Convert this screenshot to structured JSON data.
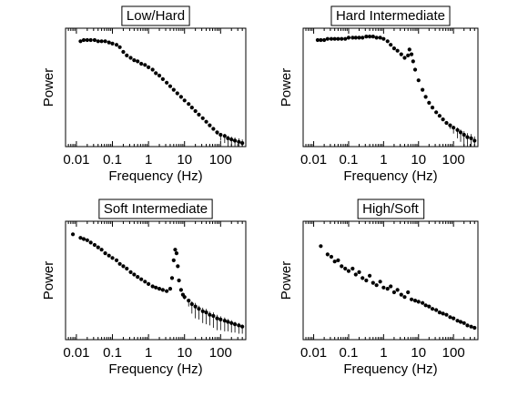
{
  "chart_data": [
    {
      "type": "scatter",
      "title": "Low/Hard",
      "xlabel": "Frequency (Hz)",
      "ylabel": "Power",
      "xscale": "log",
      "xlim": [
        0.005,
        500
      ],
      "x_tick_labels": [
        "0.01",
        "0.1",
        "1",
        "10",
        "100"
      ],
      "y_tick_labels": [],
      "y_units": "relative (log)",
      "series": [
        {
          "x": [
            0.013,
            0.016,
            0.02,
            0.025,
            0.032,
            0.04,
            0.05,
            0.063,
            0.08,
            0.1,
            0.13,
            0.16,
            0.2,
            0.25,
            0.32,
            0.4,
            0.5,
            0.63,
            0.8,
            1,
            1.3,
            1.6,
            2,
            2.5,
            3.2,
            4,
            5,
            6.3,
            8,
            10,
            13,
            16,
            20,
            25,
            32,
            40,
            50,
            63,
            80,
            100,
            130,
            160,
            200,
            250,
            320,
            400
          ],
          "y": [
            0.89,
            0.9,
            0.9,
            0.9,
            0.9,
            0.89,
            0.89,
            0.89,
            0.88,
            0.87,
            0.86,
            0.84,
            0.8,
            0.77,
            0.75,
            0.73,
            0.72,
            0.7,
            0.69,
            0.67,
            0.65,
            0.62,
            0.6,
            0.57,
            0.54,
            0.51,
            0.48,
            0.45,
            0.42,
            0.39,
            0.36,
            0.33,
            0.3,
            0.27,
            0.24,
            0.21,
            0.18,
            0.15,
            0.12,
            0.1,
            0.09,
            0.07,
            0.06,
            0.05,
            0.04,
            0.03
          ],
          "err": [
            0,
            0,
            0,
            0,
            0,
            0,
            0,
            0,
            0,
            0,
            0,
            0,
            0,
            0,
            0,
            0,
            0,
            0,
            0,
            0,
            0,
            0,
            0,
            0,
            0,
            0,
            0,
            0,
            0,
            0,
            0,
            0,
            0,
            0,
            0,
            0,
            0,
            0,
            0.02,
            0.05,
            0.06,
            0.07,
            0.08,
            0.09,
            0.1,
            0.1
          ]
        }
      ]
    },
    {
      "type": "scatter",
      "title": "Hard Intermediate",
      "xlabel": "Frequency (Hz)",
      "ylabel": "Power",
      "xscale": "log",
      "xlim": [
        0.005,
        500
      ],
      "x_tick_labels": [
        "0.01",
        "0.1",
        "1",
        "10",
        "100"
      ],
      "y_tick_labels": [],
      "y_units": "relative (log)",
      "series": [
        {
          "x": [
            0.013,
            0.016,
            0.02,
            0.025,
            0.032,
            0.04,
            0.05,
            0.063,
            0.08,
            0.1,
            0.13,
            0.16,
            0.2,
            0.25,
            0.32,
            0.4,
            0.5,
            0.63,
            0.8,
            1,
            1.3,
            1.6,
            2,
            2.5,
            3.2,
            4,
            5,
            5.5,
            6.3,
            7,
            8,
            10,
            13,
            16,
            20,
            25,
            32,
            40,
            50,
            63,
            80,
            100,
            130,
            160,
            200,
            250,
            320,
            400
          ],
          "y": [
            0.9,
            0.9,
            0.9,
            0.91,
            0.91,
            0.91,
            0.91,
            0.91,
            0.91,
            0.92,
            0.92,
            0.92,
            0.92,
            0.92,
            0.93,
            0.93,
            0.93,
            0.92,
            0.92,
            0.91,
            0.89,
            0.86,
            0.83,
            0.81,
            0.78,
            0.75,
            0.77,
            0.82,
            0.78,
            0.72,
            0.65,
            0.56,
            0.48,
            0.42,
            0.37,
            0.33,
            0.29,
            0.26,
            0.23,
            0.2,
            0.18,
            0.16,
            0.14,
            0.12,
            0.1,
            0.08,
            0.07,
            0.05
          ],
          "err": [
            0,
            0,
            0,
            0,
            0,
            0,
            0,
            0,
            0,
            0,
            0,
            0,
            0,
            0,
            0,
            0,
            0,
            0,
            0,
            0,
            0,
            0,
            0,
            0,
            0,
            0,
            0,
            0,
            0,
            0,
            0,
            0,
            0,
            0,
            0,
            0,
            0,
            0,
            0,
            0,
            0.03,
            0.05,
            0.07,
            0.08,
            0.1,
            0.11,
            0.12,
            0.12
          ]
        }
      ]
    },
    {
      "type": "scatter",
      "title": "Soft Intermediate",
      "xlabel": "Frequency (Hz)",
      "ylabel": "Power",
      "xscale": "log",
      "xlim": [
        0.005,
        500
      ],
      "x_tick_labels": [
        "0.01",
        "0.1",
        "1",
        "10",
        "100"
      ],
      "y_tick_labels": [],
      "y_units": "relative (log)",
      "series": [
        {
          "x": [
            0.008,
            0.013,
            0.016,
            0.02,
            0.025,
            0.032,
            0.04,
            0.05,
            0.063,
            0.08,
            0.1,
            0.13,
            0.16,
            0.2,
            0.25,
            0.32,
            0.4,
            0.5,
            0.63,
            0.8,
            1,
            1.3,
            1.6,
            2,
            2.5,
            3.2,
            4,
            4.5,
            5,
            5.5,
            6,
            6.5,
            7,
            8,
            9,
            10,
            13,
            16,
            20,
            25,
            32,
            40,
            50,
            63,
            80,
            100,
            130,
            160,
            200,
            250,
            320,
            400
          ],
          "y": [
            0.89,
            0.86,
            0.85,
            0.84,
            0.82,
            0.8,
            0.78,
            0.76,
            0.73,
            0.71,
            0.69,
            0.67,
            0.64,
            0.62,
            0.6,
            0.57,
            0.55,
            0.53,
            0.51,
            0.49,
            0.47,
            0.45,
            0.44,
            0.43,
            0.42,
            0.41,
            0.43,
            0.52,
            0.67,
            0.76,
            0.73,
            0.62,
            0.5,
            0.42,
            0.38,
            0.36,
            0.33,
            0.3,
            0.28,
            0.26,
            0.24,
            0.23,
            0.21,
            0.2,
            0.18,
            0.17,
            0.16,
            0.15,
            0.14,
            0.13,
            0.12,
            0.11
          ],
          "err": [
            0,
            0,
            0,
            0,
            0,
            0,
            0,
            0,
            0,
            0,
            0,
            0,
            0,
            0,
            0,
            0,
            0,
            0,
            0,
            0,
            0,
            0,
            0,
            0,
            0,
            0,
            0,
            0,
            0,
            0,
            0,
            0,
            0,
            0,
            0,
            0.02,
            0.05,
            0.08,
            0.1,
            0.09,
            0.1,
            0.1,
            0.09,
            0.1,
            0.1,
            0.09,
            0.09,
            0.08,
            0.08,
            0.07,
            0.07,
            0.06
          ]
        }
      ]
    },
    {
      "type": "scatter",
      "title": "High/Soft",
      "xlabel": "Frequency (Hz)",
      "ylabel": "Power",
      "xscale": "log",
      "xlim": [
        0.005,
        500
      ],
      "x_tick_labels": [
        "0.01",
        "0.1",
        "1",
        "10",
        "100"
      ],
      "y_tick_labels": [],
      "y_units": "relative (log)",
      "series": [
        {
          "x": [
            0.016,
            0.025,
            0.032,
            0.04,
            0.05,
            0.063,
            0.08,
            0.1,
            0.13,
            0.16,
            0.2,
            0.25,
            0.32,
            0.4,
            0.5,
            0.63,
            0.8,
            1,
            1.3,
            1.6,
            2,
            2.5,
            3.2,
            4,
            5,
            6.3,
            8,
            10,
            13,
            16,
            20,
            25,
            32,
            40,
            50,
            63,
            80,
            100,
            130,
            160,
            200,
            250,
            320,
            400
          ],
          "y": [
            0.79,
            0.72,
            0.7,
            0.66,
            0.67,
            0.62,
            0.6,
            0.58,
            0.6,
            0.55,
            0.57,
            0.52,
            0.5,
            0.54,
            0.48,
            0.46,
            0.49,
            0.44,
            0.43,
            0.45,
            0.4,
            0.42,
            0.38,
            0.36,
            0.4,
            0.34,
            0.33,
            0.32,
            0.31,
            0.29,
            0.28,
            0.26,
            0.25,
            0.23,
            0.22,
            0.21,
            0.19,
            0.18,
            0.16,
            0.15,
            0.14,
            0.12,
            0.11,
            0.1
          ],
          "err": [
            0,
            0,
            0,
            0,
            0,
            0,
            0,
            0,
            0,
            0,
            0,
            0,
            0,
            0,
            0,
            0,
            0,
            0,
            0,
            0,
            0,
            0,
            0,
            0,
            0,
            0,
            0,
            0,
            0,
            0,
            0,
            0,
            0,
            0,
            0,
            0,
            0,
            0,
            0,
            0,
            0,
            0,
            0,
            0
          ]
        }
      ]
    }
  ]
}
